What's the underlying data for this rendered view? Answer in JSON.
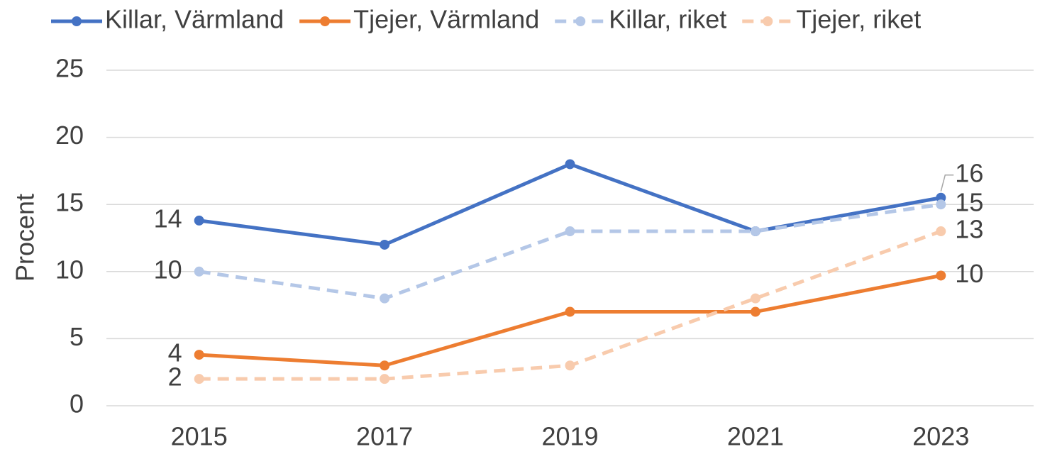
{
  "chart_data": {
    "type": "line",
    "y_label": "Procent",
    "categories": [
      "2015",
      "2017",
      "2019",
      "2021",
      "2023"
    ],
    "series": [
      {
        "name": "Killar, Värmland",
        "color": "#4472c4",
        "dashed": false,
        "values": [
          13.8,
          12,
          18,
          13,
          15.5
        ],
        "value_labels": [
          "14",
          null,
          null,
          null,
          "16"
        ]
      },
      {
        "name": "Tjejer, Värmland",
        "color": "#ed7d31",
        "dashed": false,
        "values": [
          3.8,
          3,
          7,
          7,
          9.7
        ],
        "value_labels": [
          "4",
          null,
          null,
          null,
          "10"
        ]
      },
      {
        "name": "Killar, riket",
        "color": "#b4c7e7",
        "dashed": true,
        "values": [
          10,
          8,
          13,
          13,
          15
        ],
        "value_labels": [
          "10",
          null,
          null,
          null,
          "15"
        ]
      },
      {
        "name": "Tjejer, riket",
        "color": "#f8cbad",
        "dashed": true,
        "values": [
          2,
          2,
          3,
          8,
          13
        ],
        "value_labels": [
          "2",
          null,
          null,
          null,
          "13"
        ]
      }
    ],
    "ylim": [
      0,
      25
    ],
    "yticks": [
      0,
      5,
      10,
      15,
      20,
      25
    ],
    "grid": true,
    "legend": "top"
  }
}
